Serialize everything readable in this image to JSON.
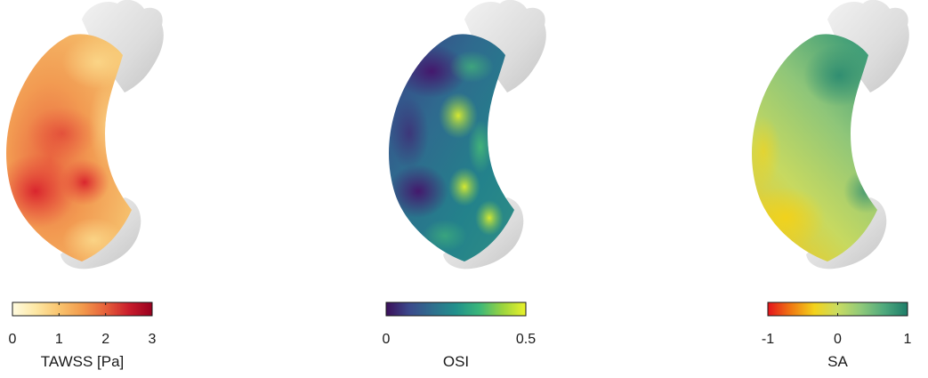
{
  "panels": [
    {
      "id": "tawss",
      "label": "TAWSS [Pa]",
      "ticks": [
        "0",
        "1",
        "2",
        "3"
      ],
      "tick_values": [
        0,
        1,
        2,
        3
      ],
      "range": [
        0,
        3
      ],
      "colormap": [
        "#fffbe0",
        "#fde7a4",
        "#f9c46e",
        "#f29a4c",
        "#e6603a",
        "#c91d2c",
        "#99001f"
      ]
    },
    {
      "id": "osi",
      "label": "OSI",
      "ticks": [
        "0",
        "0.5"
      ],
      "tick_values": [
        0,
        0.5
      ],
      "range": [
        0,
        0.5
      ],
      "colormap": [
        "#3b0f5a",
        "#3b4a8c",
        "#2f6f8e",
        "#21918c",
        "#3bb77a",
        "#9ad43f",
        "#eaf22a"
      ]
    },
    {
      "id": "sa",
      "label": "SA",
      "ticks": [
        "-1",
        "0",
        "1"
      ],
      "tick_values": [
        -1,
        0,
        1
      ],
      "range": [
        -1,
        1
      ],
      "colormap": [
        "#e4131c",
        "#f07a12",
        "#f3d21b",
        "#c9dc62",
        "#8fc97a",
        "#4fa97d",
        "#1e7d69"
      ]
    }
  ]
}
